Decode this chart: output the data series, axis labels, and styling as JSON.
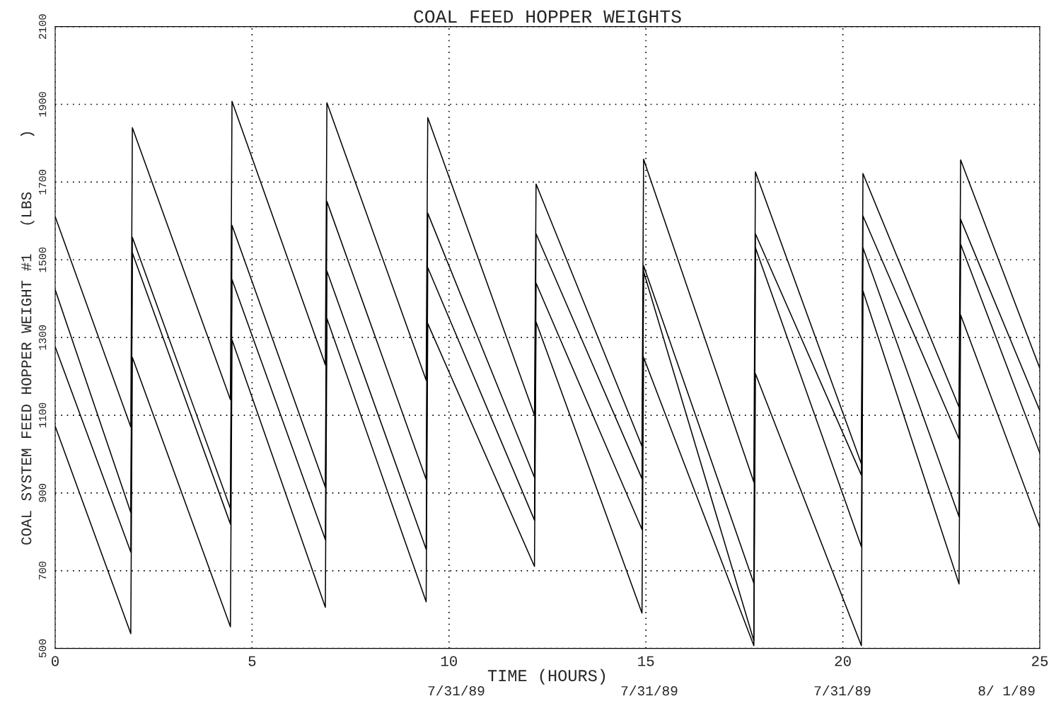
{
  "chart_data": {
    "type": "line",
    "title": "COAL FEED HOPPER WEIGHTS",
    "xlabel": "TIME (HOURS)",
    "ylabel": "COAL SYSTEM FEED HOPPER WEIGHT #1   (LBS      )",
    "x": [
      0,
      1.92,
      1.96,
      4.45,
      4.49,
      6.86,
      6.9,
      9.42,
      9.46,
      12.17,
      12.21,
      14.9,
      14.94,
      17.74,
      17.78,
      20.47,
      20.51,
      22.95,
      22.99,
      25
    ],
    "series": [
      {
        "color": "#000000",
        "values": [
          1611,
          1070,
          1840,
          1140,
          1908,
          1230,
          1904,
          1190,
          1866,
          1100,
          1695,
          1020,
          1759,
          928,
          1726,
          975,
          1722,
          1121,
          1757,
          1221
        ]
      },
      {
        "color": "#000000",
        "values": [
          1423,
          850,
          1558,
          860,
          1589,
          915,
          1650,
          935,
          1620,
          940,
          1567,
          937,
          1485,
          668,
          1567,
          946,
          1613,
          1039,
          1604,
          1112
        ]
      },
      {
        "color": "#000000",
        "values": [
          1276,
          748,
          1518,
          820,
          1449,
          780,
          1471,
          755,
          1480,
          830,
          1440,
          806,
          1470,
          520,
          1531,
          762,
          1531,
          839,
          1540,
          1003
        ]
      },
      {
        "color": "#000000",
        "values": [
          1072,
          538,
          1249,
          556,
          1294,
          606,
          1349,
          620,
          1336,
          711,
          1340,
          591,
          1249,
          507,
          1207,
          507,
          1420,
          666,
          1358,
          811
        ]
      }
    ],
    "xlim": [
      0,
      25
    ],
    "xticks": [
      0,
      5,
      10,
      15,
      20,
      25
    ],
    "ylim": [
      500,
      2100
    ],
    "yticks": [
      500,
      700,
      900,
      1100,
      1300,
      1500,
      1700,
      1900,
      2100
    ],
    "grid": true,
    "line_style": "solid",
    "annotations": [
      "7/31/89",
      "7/31/89",
      "7/31/89",
      "8/ 1/89"
    ]
  }
}
